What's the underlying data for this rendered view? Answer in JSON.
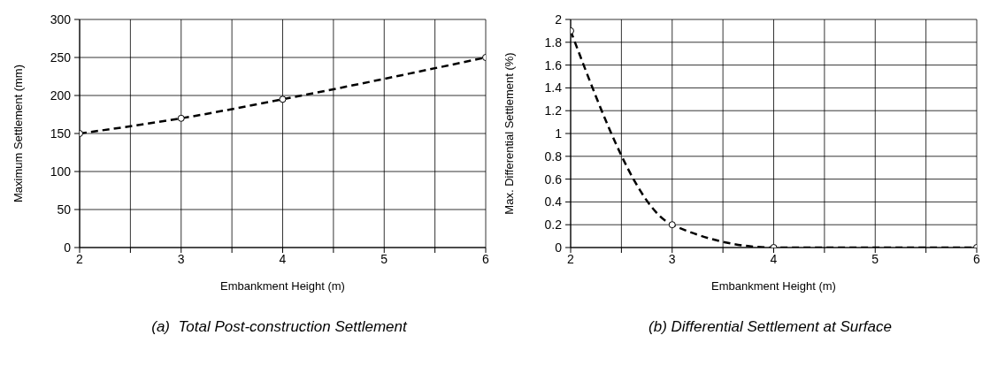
{
  "chart_data": [
    {
      "type": "line",
      "title": "(a)  Total Post-construction Settlement",
      "xlabel": "Embankment Height (m)",
      "ylabel": "Maximum Settlement (mm)",
      "x": [
        2,
        3,
        4,
        6
      ],
      "series": [
        {
          "color": "#000000",
          "values": [
            150,
            170,
            195,
            250
          ]
        }
      ],
      "xlim": [
        2,
        6
      ],
      "xticks": [
        2,
        {
          "value": 2.5,
          "label": null
        },
        3,
        {
          "value": 3.5,
          "label": null
        },
        4,
        {
          "value": 4.5,
          "label": null
        },
        5,
        {
          "value": 5.5,
          "label": null
        },
        6
      ],
      "ylim": [
        0,
        300
      ],
      "yticks": [
        0,
        50,
        100,
        150,
        200,
        250,
        300
      ],
      "grid": true,
      "marker": "circle",
      "line_style": "dashed"
    },
    {
      "type": "line",
      "title": "(b) Differential Settlement at Surface",
      "xlabel": "Embankment Height (m)",
      "ylabel": "Max. Differential Settlement (%)",
      "x": [
        2,
        3,
        4,
        6
      ],
      "series": [
        {
          "color": "#000000",
          "values": [
            1.9,
            0.2,
            0,
            0
          ]
        }
      ],
      "xlim": [
        2,
        6
      ],
      "xticks": [
        2,
        {
          "value": 2.5,
          "label": null
        },
        3,
        {
          "value": 3.5,
          "label": null
        },
        4,
        {
          "value": 4.5,
          "label": null
        },
        5,
        {
          "value": 5.5,
          "label": null
        },
        6
      ],
      "ylim": [
        0,
        2
      ],
      "yticks": [
        0,
        0.2,
        0.4,
        0.6,
        0.8,
        1,
        1.2,
        1.4,
        1.6,
        1.8,
        2
      ],
      "grid": true,
      "marker": "circle",
      "line_style": "dashed"
    }
  ]
}
